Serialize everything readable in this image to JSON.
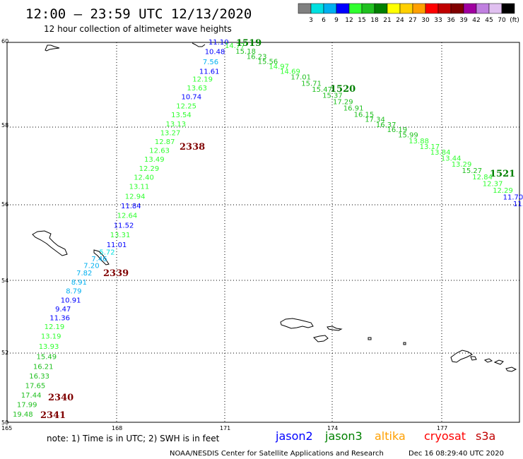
{
  "title": "12:00 – 23:59 UTC 12/13/2020",
  "subtitle": "12 hour collection of altimeter wave heights",
  "legend": {
    "colors": [
      "#808080",
      "#00e0e0",
      "#00b0f0",
      "#0000ff",
      "#30ff30",
      "#20c020",
      "#008000",
      "#ffff00",
      "#ffd000",
      "#ffa000",
      "#ff0000",
      "#c00000",
      "#800000",
      "#a000a0",
      "#c080e0",
      "#e0c0f0",
      "#000000"
    ],
    "labels": [
      "3",
      "6",
      "9",
      "12",
      "15",
      "18",
      "21",
      "24",
      "27",
      "30",
      "33",
      "36",
      "39",
      "42",
      "45",
      "70",
      "(ft)"
    ]
  },
  "axes": {
    "lon_ticks": [
      "165",
      "168",
      "171",
      "174",
      "177"
    ],
    "lat_ticks": [
      "60",
      "58",
      "56",
      "54",
      "52",
      "50"
    ]
  },
  "pass_labels": [
    {
      "text": "1519",
      "color": "#008000"
    },
    {
      "text": "1520",
      "color": "#008000"
    },
    {
      "text": "1521",
      "color": "#008000"
    },
    {
      "text": "2338",
      "color": "#800000"
    },
    {
      "text": "2339",
      "color": "#800000"
    },
    {
      "text": "2340",
      "color": "#800000"
    },
    {
      "text": "2341",
      "color": "#800000"
    }
  ],
  "track_ascending": [
    {
      "v": "11.10",
      "c": "#0000ff"
    },
    {
      "v": "10.48",
      "c": "#0000ff"
    },
    {
      "v": "7.56",
      "c": "#00b0f0"
    },
    {
      "v": "11.61",
      "c": "#0000ff"
    },
    {
      "v": "12.19",
      "c": "#30ff30"
    },
    {
      "v": "13.63",
      "c": "#30ff30"
    },
    {
      "v": "10.74",
      "c": "#0000ff"
    },
    {
      "v": "12.25",
      "c": "#30ff30"
    },
    {
      "v": "13.54",
      "c": "#30ff30"
    },
    {
      "v": "13.13",
      "c": "#30ff30"
    },
    {
      "v": "13.27",
      "c": "#30ff30"
    },
    {
      "v": "12.87",
      "c": "#30ff30"
    },
    {
      "v": "12.63",
      "c": "#30ff30"
    },
    {
      "v": "13.49",
      "c": "#30ff30"
    },
    {
      "v": "12.29",
      "c": "#30ff30"
    },
    {
      "v": "12.40",
      "c": "#30ff30"
    },
    {
      "v": "13.11",
      "c": "#30ff30"
    },
    {
      "v": "12.94",
      "c": "#30ff30"
    },
    {
      "v": "11.84",
      "c": "#0000ff"
    },
    {
      "v": "12.64",
      "c": "#30ff30"
    },
    {
      "v": "11.52",
      "c": "#0000ff"
    },
    {
      "v": "13.31",
      "c": "#30ff30"
    },
    {
      "v": "11.01",
      "c": "#0000ff"
    },
    {
      "v": "5.72",
      "c": "#00e0e0"
    },
    {
      "v": "7.46",
      "c": "#00b0f0"
    },
    {
      "v": "7.20",
      "c": "#00b0f0"
    },
    {
      "v": "7.82",
      "c": "#00b0f0"
    },
    {
      "v": "8.91",
      "c": "#00b0f0"
    },
    {
      "v": "8.79",
      "c": "#00b0f0"
    },
    {
      "v": "10.91",
      "c": "#0000ff"
    },
    {
      "v": "9.47",
      "c": "#0000ff"
    },
    {
      "v": "11.36",
      "c": "#0000ff"
    },
    {
      "v": "12.19",
      "c": "#30ff30"
    },
    {
      "v": "13.19",
      "c": "#30ff30"
    },
    {
      "v": "13.93",
      "c": "#30ff30"
    },
    {
      "v": "15.49",
      "c": "#20c020"
    },
    {
      "v": "16.21",
      "c": "#20c020"
    },
    {
      "v": "16.33",
      "c": "#20c020"
    },
    {
      "v": "17.65",
      "c": "#20c020"
    },
    {
      "v": "17.44",
      "c": "#20c020"
    },
    {
      "v": "17.99",
      "c": "#20c020"
    },
    {
      "v": "19.48",
      "c": "#20c020"
    }
  ],
  "track_descending": [
    {
      "v": "14.77",
      "c": "#30ff30"
    },
    {
      "v": "15.18",
      "c": "#20c020"
    },
    {
      "v": "16.23",
      "c": "#20c020"
    },
    {
      "v": "15.56",
      "c": "#20c020"
    },
    {
      "v": "14.97",
      "c": "#30ff30"
    },
    {
      "v": "14.69",
      "c": "#30ff30"
    },
    {
      "v": "17.01",
      "c": "#20c020"
    },
    {
      "v": "15.71",
      "c": "#20c020"
    },
    {
      "v": "15.47",
      "c": "#20c020"
    },
    {
      "v": "15.37",
      "c": "#20c020"
    },
    {
      "v": "17.29",
      "c": "#20c020"
    },
    {
      "v": "16.91",
      "c": "#20c020"
    },
    {
      "v": "16.15",
      "c": "#20c020"
    },
    {
      "v": "17.34",
      "c": "#20c020"
    },
    {
      "v": "16.37",
      "c": "#20c020"
    },
    {
      "v": "16.19",
      "c": "#20c020"
    },
    {
      "v": "15.99",
      "c": "#20c020"
    },
    {
      "v": "13.88",
      "c": "#30ff30"
    },
    {
      "v": "13.17",
      "c": "#30ff30"
    },
    {
      "v": "13.84",
      "c": "#30ff30"
    },
    {
      "v": "13.44",
      "c": "#30ff30"
    },
    {
      "v": "13.29",
      "c": "#30ff30"
    },
    {
      "v": "15.27",
      "c": "#20c020"
    },
    {
      "v": "12.84",
      "c": "#30ff30"
    },
    {
      "v": "12.37",
      "c": "#30ff30"
    },
    {
      "v": "12.29",
      "c": "#30ff30"
    },
    {
      "v": "11.70",
      "c": "#0000ff"
    },
    {
      "v": "11.",
      "c": "#0000ff"
    }
  ],
  "footer": {
    "note": "note:  1) Time is in UTC;  2) SWH is in feet",
    "satellites": [
      {
        "name": "jason2",
        "color": "#0000ff"
      },
      {
        "name": "jason3",
        "color": "#008000"
      },
      {
        "name": "altika",
        "color": "#ffa000"
      },
      {
        "name": "cryosat",
        "color": "#ff0000"
      },
      {
        "name": "s3a",
        "color": "#c00000"
      }
    ],
    "credit": "NOAA/NESDIS Center for Satellite Applications and Research",
    "timestamp": "Dec 16 08:29:40 UTC 2020"
  }
}
